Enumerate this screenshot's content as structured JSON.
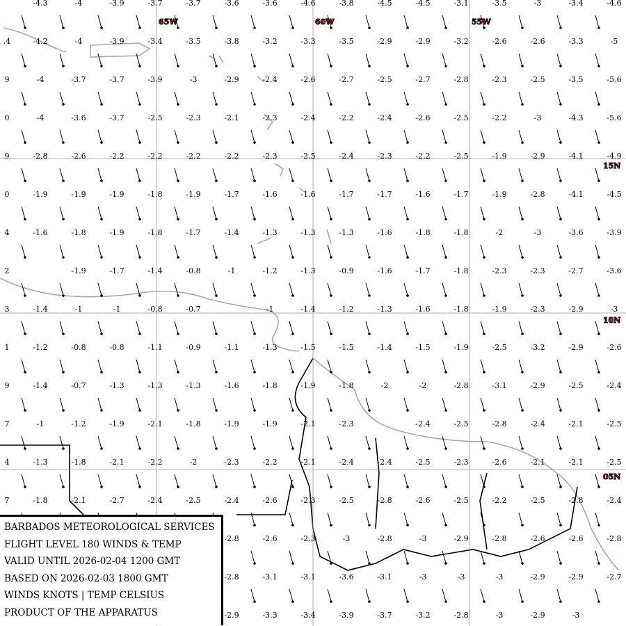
{
  "map": {
    "lon_labels": [
      "65W",
      "60W",
      "55W"
    ],
    "lat_labels": [
      "15N",
      "10N",
      "05N"
    ],
    "edge_labels": [
      null,
      ".4",
      "9",
      "0",
      "9",
      "0",
      "4",
      "2",
      "3",
      "1",
      "9",
      "7",
      "4",
      "7",
      null,
      null,
      null
    ],
    "temperatures": [
      [
        -4.3,
        -4.0,
        -3.9,
        -3.7,
        -3.7,
        -3.6,
        -3.6,
        -4.6,
        -3.8,
        -4.5,
        -4.5,
        -3.1,
        -3.5,
        -3.0,
        -3.4,
        -4.6
      ],
      [
        -4.2,
        -4.0,
        -3.9,
        -3.4,
        -3.5,
        -3.8,
        -3.2,
        -3.3,
        -3.5,
        -2.9,
        -2.9,
        -3.2,
        -2.6,
        -2.6,
        -3.3,
        -5.0
      ],
      [
        -4.0,
        -3.7,
        -3.7,
        -3.9,
        -3.0,
        -2.9,
        -2.4,
        -2.6,
        -2.7,
        -2.5,
        -2.7,
        -2.8,
        -2.3,
        -2.5,
        -3.5,
        -5.6
      ],
      [
        -4.0,
        -3.6,
        -3.7,
        -2.5,
        -2.3,
        -2.1,
        -2.3,
        -2.4,
        -2.2,
        -2.4,
        -2.6,
        -2.5,
        -2.2,
        -3.0,
        -4.3,
        -5.6
      ],
      [
        -2.8,
        -2.6,
        -2.2,
        -2.2,
        -2.2,
        -2.2,
        -2.3,
        -2.5,
        -2.4,
        -2.3,
        -2.2,
        -2.5,
        -1.9,
        -2.9,
        -4.1,
        -4.9
      ],
      [
        -1.9,
        -1.9,
        -1.9,
        -1.8,
        -1.9,
        -1.7,
        -1.6,
        -1.6,
        -1.7,
        -1.7,
        -1.6,
        -1.7,
        -1.9,
        -2.8,
        -4.1,
        -4.5
      ],
      [
        -1.6,
        -1.8,
        -1.9,
        -1.8,
        -1.7,
        -1.4,
        -1.3,
        -1.3,
        -1.3,
        -1.6,
        -1.8,
        -1.8,
        -2.0,
        -3.0,
        -3.6,
        -3.9
      ],
      [
        null,
        -1.9,
        -1.7,
        -1.4,
        -0.8,
        -1.0,
        -1.2,
        -1.3,
        -0.9,
        -1.6,
        -1.7,
        -1.8,
        -2.3,
        -2.3,
        -2.7,
        -3.6
      ],
      [
        -1.4,
        -1.0,
        -1.0,
        -0.8,
        -0.7,
        null,
        -1.0,
        -1.4,
        -1.2,
        -1.3,
        -1.6,
        -1.8,
        -1.9,
        -2.3,
        -2.9,
        -3.0
      ],
      [
        -1.2,
        -0.8,
        -0.8,
        -1.1,
        -0.9,
        -1.1,
        -1.3,
        -1.5,
        -1.5,
        -1.4,
        -1.5,
        -1.9,
        -2.5,
        -3.2,
        -2.9,
        -2.6
      ],
      [
        -1.4,
        -0.7,
        -1.3,
        -1.3,
        -1.3,
        -1.6,
        -1.8,
        -1.9,
        -1.8,
        -2.0,
        -2.0,
        -2.8,
        -3.1,
        -2.9,
        -2.5,
        -2.4
      ],
      [
        -1.0,
        -1.2,
        -1.9,
        -2.1,
        -1.8,
        -1.9,
        -1.9,
        -2.1,
        -2.3,
        null,
        -2.4,
        -2.5,
        -2.8,
        -2.4,
        -2.1,
        -2.5
      ],
      [
        -1.3,
        -1.8,
        -2.1,
        -2.2,
        -2.0,
        -2.3,
        -2.2,
        -2.1,
        -2.4,
        -2.4,
        -2.5,
        -2.3,
        -2.6,
        -2.1,
        -2.1,
        -2.5
      ],
      [
        -1.8,
        -2.1,
        -2.7,
        -2.4,
        -2.5,
        -2.4,
        -2.6,
        -2.3,
        -2.5,
        -2.8,
        -2.6,
        -2.5,
        -2.2,
        -2.5,
        -2.8,
        -2.4
      ],
      [
        null,
        null,
        null,
        null,
        null,
        -2.8,
        -2.6,
        -2.3,
        -3.0,
        -2.8,
        -3.0,
        -2.9,
        -2.8,
        -2.6,
        -2.6,
        -2.8
      ],
      [
        null,
        null,
        null,
        null,
        null,
        -2.8,
        -3.1,
        -3.1,
        -3.6,
        -3.1,
        -3.0,
        -3.0,
        -3.0,
        -2.9,
        -2.9,
        -2.7
      ],
      [
        null,
        null,
        null,
        null,
        null,
        -2.9,
        -3.3,
        -3.4,
        -3.9,
        -3.7,
        -3.2,
        -2.8,
        -3.0,
        -2.9,
        -3.0,
        null
      ]
    ]
  },
  "info": [
    "BARBADOS METEOROLOGICAL SERVICES",
    "FLIGHT LEVEL 180 WINDS & TEMP",
    "VALID UNTIL 2026-02-04 1200 GMT",
    "BASED ON 2026-02-03 1800 GMT",
    "WINDS KNOTS | TEMP CELSIUS",
    "PRODUCT OF THE APPARATUS"
  ]
}
